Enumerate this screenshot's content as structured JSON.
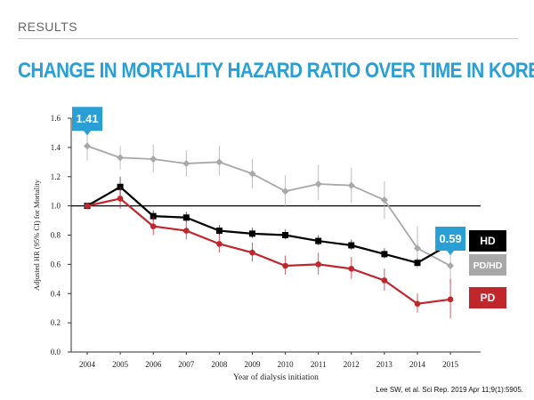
{
  "header": {
    "section_label": "RESULTS",
    "title": "CHANGE IN MORTALITY HAZARD RATIO OVER TIME IN KOREA"
  },
  "citation": "Lee SW, et al. Sci Rep. 2019 Apr 11;9(1):5905.",
  "colors": {
    "accent": "#2a9fd6",
    "hd": "#000000",
    "pd_hd": "#a8a8a8",
    "pd": "#c0272d"
  },
  "chart_data": {
    "type": "line",
    "xlabel": "Year of dialysis initiation",
    "ylabel": "Adjusted HR (95% CI) for Mortality",
    "x": [
      "2004",
      "2005",
      "2006",
      "2007",
      "2008",
      "2009",
      "2010",
      "2011",
      "2012",
      "2013",
      "2014",
      "2015"
    ],
    "ylim": [
      0,
      1.6
    ],
    "yticks": [
      "0.0",
      "0.2",
      "0.4",
      "0.6",
      "0.8",
      "1.0",
      "1.2",
      "1.4",
      "1.6"
    ],
    "reference_line": 1.0,
    "grid": false,
    "series": [
      {
        "name": "PD/HD",
        "color_key": "pd_hd",
        "marker": "diamond",
        "values": [
          1.41,
          1.33,
          1.32,
          1.29,
          1.3,
          1.22,
          1.1,
          1.15,
          1.14,
          1.04,
          0.71,
          0.59
        ],
        "ci_low": [
          1.31,
          1.25,
          1.23,
          1.2,
          1.21,
          1.12,
          0.99,
          1.04,
          1.02,
          0.91,
          0.57,
          0.47
        ],
        "ci_high": [
          1.52,
          1.41,
          1.42,
          1.38,
          1.41,
          1.32,
          1.21,
          1.28,
          1.26,
          1.17,
          0.86,
          0.76
        ]
      },
      {
        "name": "HD",
        "color_key": "hd",
        "marker": "square",
        "values": [
          1.0,
          1.13,
          0.93,
          0.92,
          0.83,
          0.81,
          0.8,
          0.76,
          0.73,
          0.67,
          0.61,
          0.74
        ],
        "ci_low": [
          1.0,
          1.07,
          0.9,
          0.89,
          0.8,
          0.78,
          0.77,
          0.73,
          0.7,
          0.64,
          0.59,
          0.7
        ],
        "ci_high": [
          1.0,
          1.2,
          0.97,
          0.96,
          0.87,
          0.85,
          0.84,
          0.8,
          0.77,
          0.71,
          0.64,
          0.79
        ]
      },
      {
        "name": "PD",
        "color_key": "pd",
        "marker": "circle",
        "values": [
          1.0,
          1.05,
          0.86,
          0.83,
          0.74,
          0.68,
          0.59,
          0.6,
          0.57,
          0.49,
          0.33,
          0.36
        ],
        "ci_low": [
          1.0,
          0.98,
          0.8,
          0.77,
          0.68,
          0.62,
          0.53,
          0.53,
          0.5,
          0.42,
          0.27,
          0.23
        ],
        "ci_high": [
          1.0,
          1.13,
          0.93,
          0.9,
          0.81,
          0.75,
          0.66,
          0.68,
          0.65,
          0.57,
          0.4,
          0.5
        ]
      }
    ],
    "callouts": [
      {
        "text": "1.41",
        "series": "PD/HD",
        "year": "2004"
      },
      {
        "text": "0.59",
        "series": "PD/HD",
        "year": "2015"
      }
    ],
    "end_labels": [
      {
        "text": "HD",
        "series": "HD",
        "style": "hd"
      },
      {
        "text": "PD/HD",
        "series": "PD/HD",
        "style": "pd_hd"
      },
      {
        "text": "PD",
        "series": "PD",
        "style": "pd"
      }
    ]
  }
}
